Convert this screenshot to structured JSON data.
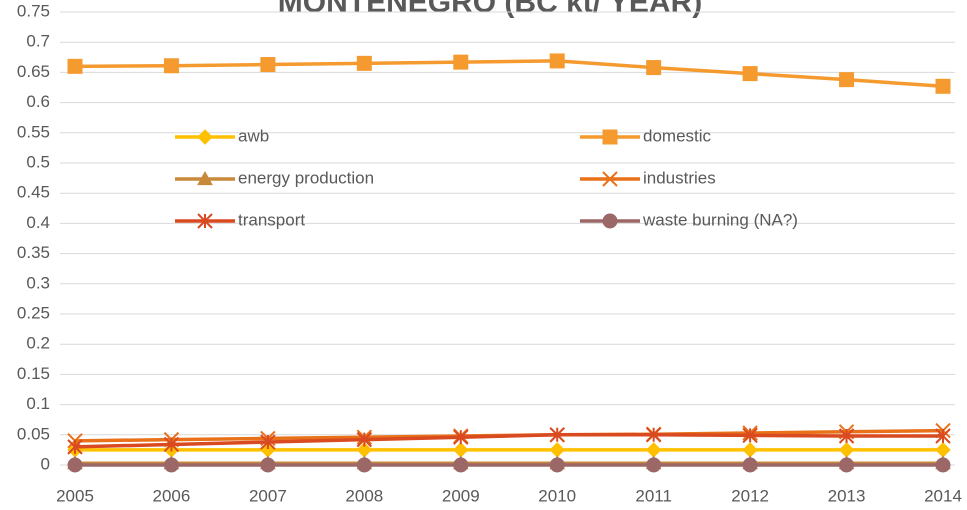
{
  "chart_data": {
    "type": "line",
    "title": "MONTENEGRO (BC kt/ YEAR)",
    "categories": [
      "2005",
      "2006",
      "2007",
      "2008",
      "2009",
      "2010",
      "2011",
      "2012",
      "2013",
      "2014"
    ],
    "ylim": [
      0,
      0.75
    ],
    "yticks": [
      0,
      0.05,
      0.1,
      0.15,
      0.2,
      0.25,
      0.3,
      0.35,
      0.4,
      0.45,
      0.5,
      0.55,
      0.6,
      0.65,
      0.7,
      0.75
    ],
    "grid": true,
    "series": [
      {
        "name": "awb",
        "color": "#FFC000",
        "marker": "diamond",
        "values": [
          0.025,
          0.025,
          0.025,
          0.025,
          0.025,
          0.025,
          0.025,
          0.025,
          0.025,
          0.025
        ]
      },
      {
        "name": "domestic",
        "color": "#F59A2F",
        "marker": "square",
        "values": [
          0.66,
          0.661,
          0.663,
          0.665,
          0.667,
          0.669,
          0.658,
          0.648,
          0.638,
          0.627
        ]
      },
      {
        "name": "energy production",
        "color": "#C8893A",
        "marker": "triangle",
        "values": [
          0.003,
          0.003,
          0.003,
          0.003,
          0.003,
          0.003,
          0.003,
          0.003,
          0.003,
          0.003
        ]
      },
      {
        "name": "industries",
        "color": "#E8711A",
        "marker": "x",
        "values": [
          0.04,
          0.042,
          0.044,
          0.046,
          0.048,
          0.05,
          0.051,
          0.053,
          0.055,
          0.057
        ]
      },
      {
        "name": "transport",
        "color": "#D94A20",
        "marker": "star",
        "values": [
          0.03,
          0.034,
          0.038,
          0.042,
          0.046,
          0.05,
          0.05,
          0.049,
          0.048,
          0.048
        ]
      },
      {
        "name": "waste burning (NA?)",
        "color": "#9C6767",
        "marker": "circle",
        "values": [
          0,
          0,
          0,
          0,
          0,
          0,
          0,
          0,
          0,
          0
        ]
      }
    ]
  }
}
